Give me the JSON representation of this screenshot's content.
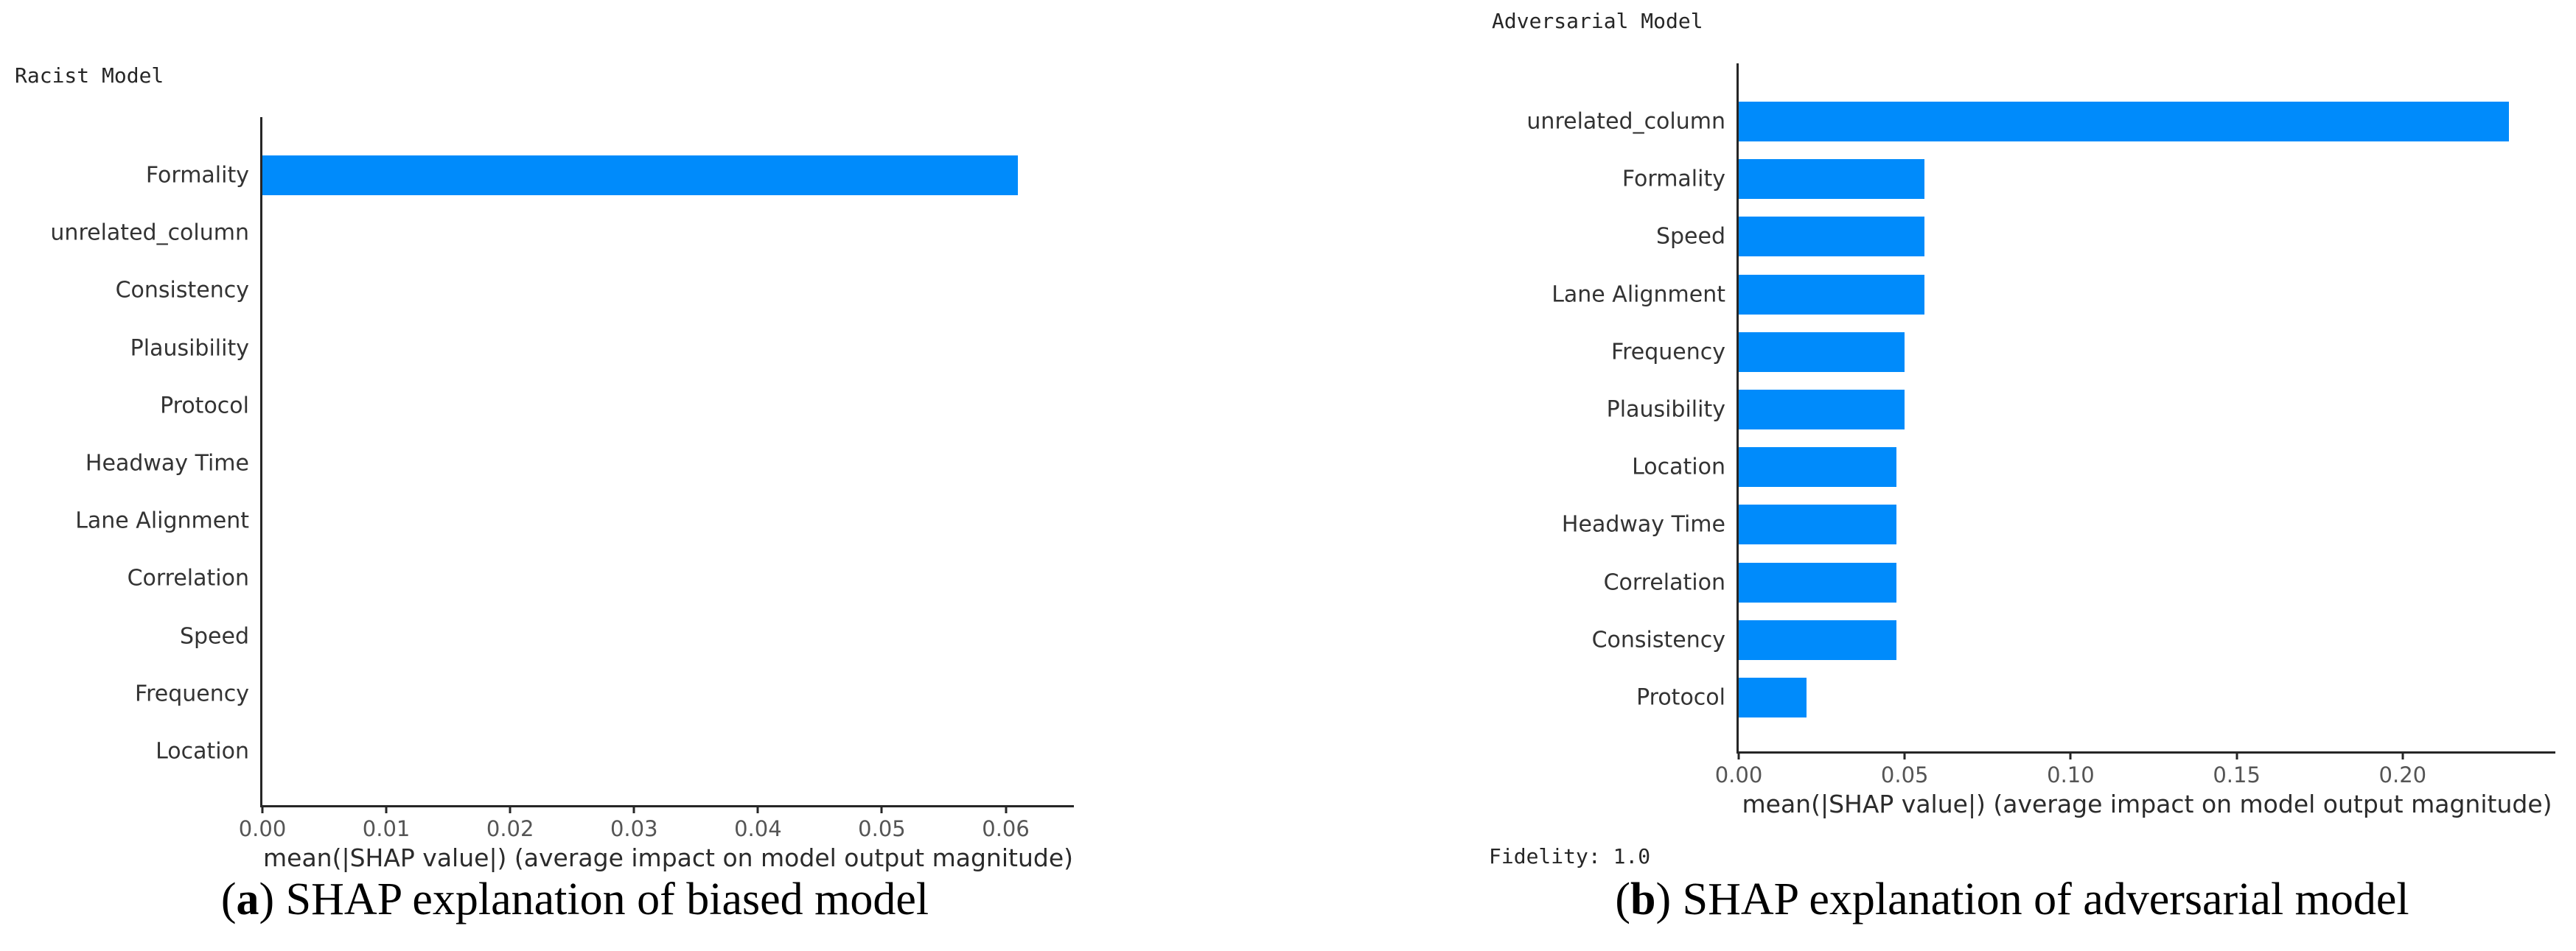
{
  "page": {
    "background": "#ffffff"
  },
  "colors": {
    "bar_blue": "#008bfb",
    "axis_spine": "#262626",
    "tick_label": "#555555",
    "category_label": "#333333",
    "xlabel_text": "#2b2b2b",
    "caption_text": "#000000"
  },
  "figures": [
    {
      "title": "Racist Model",
      "xlabel": "mean(|SHAP value|) (average impact on model output magnitude)",
      "caption": {
        "open": "(",
        "letter": "a",
        "close": ")",
        "text": " SHAP explanation of biased model"
      }
    },
    {
      "title": "Adversarial Model",
      "xlabel": "mean(|SHAP value|) (average impact on model output magnitude)",
      "fidelity": "Fidelity: 1.0",
      "caption": {
        "open": "(",
        "letter": "b",
        "close": ")",
        "text": " SHAP explanation of adversarial model"
      }
    }
  ],
  "chart_data": [
    {
      "type": "bar",
      "orientation": "horizontal",
      "title": "Racist Model",
      "categories": [
        "Formality",
        "unrelated_column",
        "Consistency",
        "Plausibility",
        "Protocol",
        "Headway Time",
        "Lane Alignment",
        "Correlation",
        "Speed",
        "Frequency",
        "Location"
      ],
      "values": [
        0.061,
        0.0,
        0.0,
        0.0,
        0.0,
        0.0,
        0.0,
        0.0,
        0.0,
        0.0,
        0.0
      ],
      "xlabel": "mean(|SHAP value|) (average impact on model output magnitude)",
      "ylabel": "",
      "xlim": [
        0,
        0.0655
      ],
      "xticks": [
        0.0,
        0.01,
        0.02,
        0.03,
        0.04,
        0.05,
        0.06
      ],
      "xtick_labels": [
        "0.00",
        "0.01",
        "0.02",
        "0.03",
        "0.04",
        "0.05",
        "0.06"
      ],
      "bar_color": "#008bfb",
      "grid": false,
      "legend": null
    },
    {
      "type": "bar",
      "orientation": "horizontal",
      "title": "Adversarial Model",
      "categories": [
        "unrelated_column",
        "Formality",
        "Speed",
        "Lane Alignment",
        "Frequency",
        "Plausibility",
        "Location",
        "Headway Time",
        "Correlation",
        "Consistency",
        "Protocol"
      ],
      "values": [
        0.232,
        0.056,
        0.056,
        0.056,
        0.05,
        0.05,
        0.0475,
        0.0475,
        0.0475,
        0.0475,
        0.0205
      ],
      "xlabel": "mean(|SHAP value|) (average impact on model output magnitude)",
      "ylabel": "",
      "xlim": [
        0,
        0.246
      ],
      "xticks": [
        0.0,
        0.05,
        0.1,
        0.15,
        0.2
      ],
      "xtick_labels": [
        "0.00",
        "0.05",
        "0.10",
        "0.15",
        "0.20"
      ],
      "bar_color": "#008bfb",
      "grid": false,
      "legend": null,
      "annotation": "Fidelity: 1.0"
    }
  ]
}
